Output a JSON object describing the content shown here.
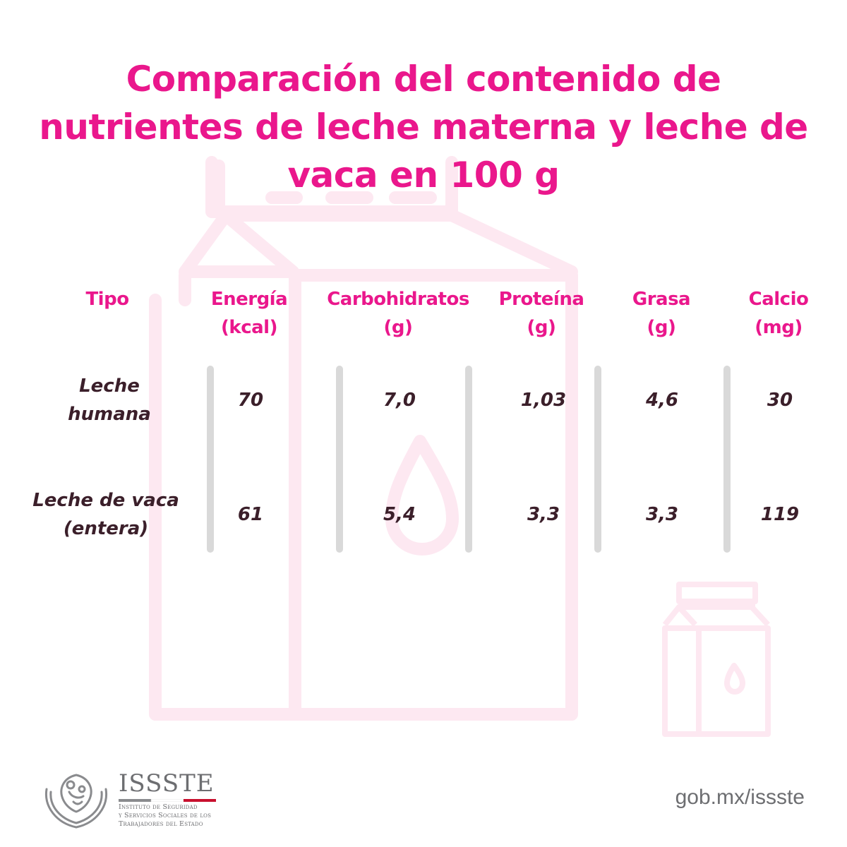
{
  "title": "Comparación del contenido de nutrientes de leche materna y leche de vaca en 100 g",
  "columns": [
    {
      "line1": "Tipo",
      "line2": ""
    },
    {
      "line1": "Energía",
      "line2": "(kcal)"
    },
    {
      "line1": "Carbohidratos",
      "line2": "(g)"
    },
    {
      "line1": "Proteína",
      "line2": "(g)"
    },
    {
      "line1": "Grasa",
      "line2": "(g)"
    },
    {
      "line1": "Calcio",
      "line2": "(mg)"
    }
  ],
  "rows": [
    {
      "label1": "Leche",
      "label2": "humana",
      "values": [
        "70",
        "7,0",
        "1,03",
        "4,6",
        "30"
      ]
    },
    {
      "label1": "Leche de vaca",
      "label2": "(entera)",
      "values": [
        "61",
        "5,4",
        "3,3",
        "3,3",
        "119"
      ]
    }
  ],
  "footer": {
    "logo_name": "ISSSTE",
    "logo_lines": [
      "Instituto de Seguridad",
      "y Servicios Sociales de los",
      "Trabajadores del Estado"
    ],
    "website": "gob.mx/issste"
  },
  "colors": {
    "accent": "#ea178c",
    "text_dark": "#3b1f2a",
    "divider": "#d9d9d9",
    "watermark": "#fde8f1",
    "footer_gray": "#6d6e71"
  },
  "icons": {
    "background": "milk-carton-icon",
    "corner": "milk-carton-icon",
    "logo": "issste-emblem-icon"
  }
}
